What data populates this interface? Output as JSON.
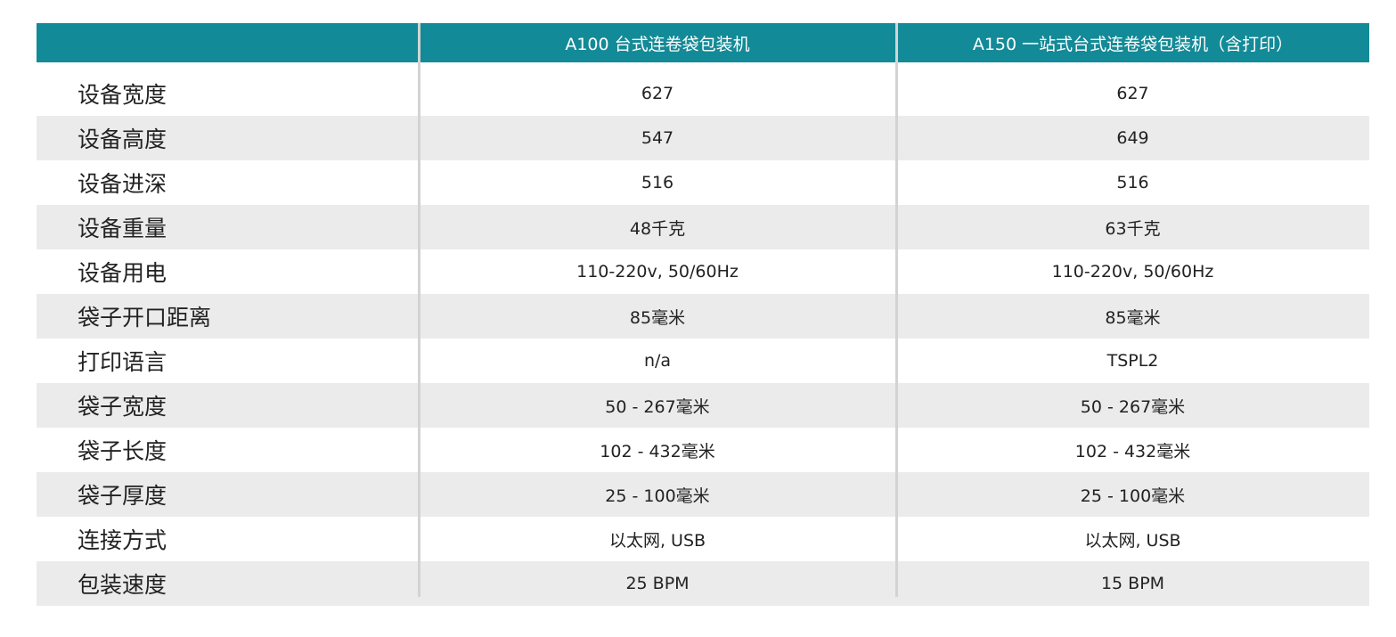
{
  "colors": {
    "header_bg": "#138a97",
    "alt_row_bg": "#ebebeb",
    "divider": "#d3d3d3"
  },
  "headers": [
    "",
    "A100  台式连卷袋包装机",
    "A150 一站式台式连卷袋包装机（含打印）"
  ],
  "rows": [
    {
      "label": "设备宽度",
      "a100": "627",
      "a150": "627"
    },
    {
      "label": "设备高度",
      "a100": "547",
      "a150": "649"
    },
    {
      "label": "设备进深",
      "a100": "516",
      "a150": "516"
    },
    {
      "label": "设备重量",
      "a100": "48千克",
      "a150": "63千克"
    },
    {
      "label": "设备用电",
      "a100": "110-220v, 50/60Hz",
      "a150": "110-220v, 50/60Hz"
    },
    {
      "label": "袋子开口距离",
      "a100": "85毫米",
      "a150": "85毫米"
    },
    {
      "label": "打印语言",
      "a100": "n/a",
      "a150": "TSPL2"
    },
    {
      "label": "袋子宽度",
      "a100": "50 - 267毫米",
      "a150": "50 - 267毫米"
    },
    {
      "label": "袋子长度",
      "a100": "102 - 432毫米",
      "a150": "102 - 432毫米"
    },
    {
      "label": "袋子厚度",
      "a100": "25 - 100毫米",
      "a150": "25 - 100毫米"
    },
    {
      "label": "连接方式",
      "a100": "以太网, USB",
      "a150": "以太网, USB"
    },
    {
      "label": "包装速度",
      "a100": "25 BPM",
      "a150": "15 BPM"
    }
  ]
}
